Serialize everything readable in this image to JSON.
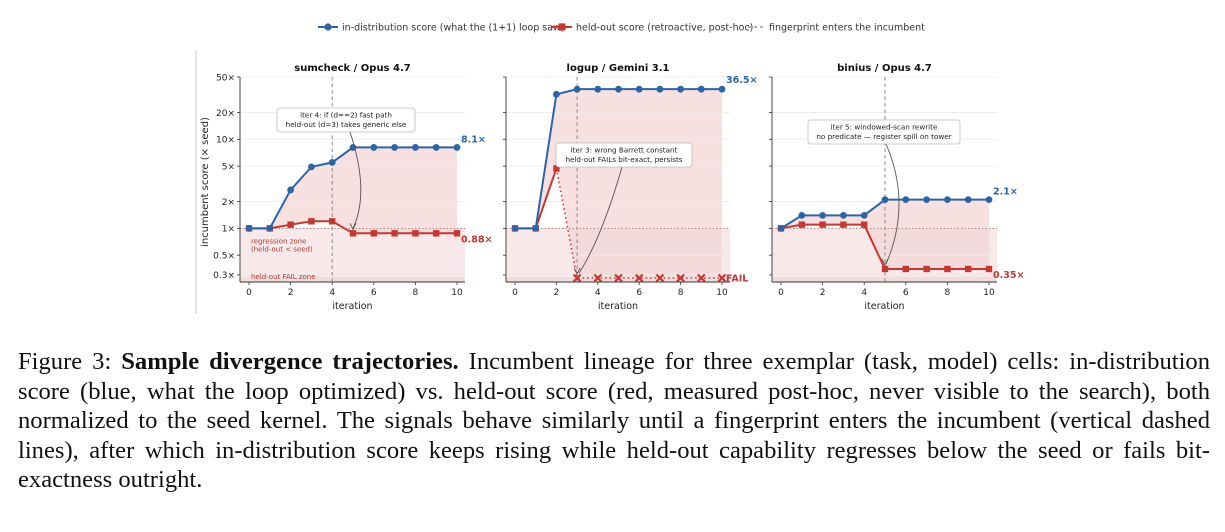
{
  "legend": {
    "in_dist": "in-distribution score (what the (1+1) loop saw)",
    "held_out": "held-out score (retroactive, post-hoc)",
    "fingerprint": "fingerprint enters the incumbent"
  },
  "colors": {
    "in_dist": "#2b65a8",
    "held_out": "#c8362f",
    "fill": "#f3d6d6",
    "zone": "#f7e9e9",
    "fail_zone": "#f1dcdc"
  },
  "shared": {
    "ylabel": "incumbent score  (× seed)",
    "xlabel": "iteration",
    "regression_zone": [
      "regression zone",
      "(held-out < seed)"
    ],
    "fail_zone": "held-out FAIL zone"
  },
  "chart_data": [
    {
      "type": "line",
      "title": "sumcheck / Opus 4.7",
      "x": [
        0,
        1,
        2,
        3,
        4,
        5,
        6,
        7,
        8,
        9,
        10
      ],
      "xticks": [
        0,
        2,
        4,
        6,
        8,
        10
      ],
      "yscale": "log",
      "yticks": [
        0.3,
        0.5,
        1,
        2,
        5,
        10,
        20,
        50
      ],
      "yticklabels": [
        "0.3×",
        "0.5×",
        "1×",
        "2×",
        "5×",
        "10×",
        "20×",
        "50×"
      ],
      "ylim": [
        0.25,
        50
      ],
      "series": [
        {
          "key": "in_dist",
          "values": [
            1,
            1,
            2.7,
            4.9,
            5.5,
            8.1,
            8.1,
            8.1,
            8.1,
            8.1,
            8.1
          ]
        },
        {
          "key": "held_out",
          "values": [
            1,
            1,
            1.1,
            1.2,
            1.2,
            0.88,
            0.88,
            0.88,
            0.88,
            0.88,
            0.88
          ]
        }
      ],
      "fingerprint_iter": 4,
      "annotation": {
        "lines": [
          "iter 4:  if (d==2) fast path",
          "held-out (d=3) takes generic else"
        ],
        "target_iter": 5
      },
      "end_labels": {
        "in_dist": "8.1×",
        "held_out": "0.88×"
      },
      "show_ylabel": true,
      "show_zone_labels": true
    },
    {
      "type": "line",
      "title": "logup / Gemini 3.1",
      "x": [
        0,
        1,
        2,
        3,
        4,
        5,
        6,
        7,
        8,
        9,
        10
      ],
      "xticks": [
        0,
        2,
        4,
        6,
        8,
        10
      ],
      "yscale": "log",
      "ylim": [
        0.25,
        50
      ],
      "series": [
        {
          "key": "in_dist",
          "values": [
            1,
            1,
            32,
            36.5,
            36.5,
            36.5,
            36.5,
            36.5,
            36.5,
            36.5,
            36.5
          ]
        },
        {
          "key": "held_out",
          "values": [
            1,
            1,
            4.7,
            "FAIL",
            "FAIL",
            "FAIL",
            "FAIL",
            "FAIL",
            "FAIL",
            "FAIL",
            "FAIL"
          ]
        }
      ],
      "fingerprint_iter": 3,
      "annotation": {
        "lines": [
          "iter 3:  wrong Barrett constant",
          "held-out FAILs bit-exact, persists"
        ],
        "target_iter": 3
      },
      "end_labels": {
        "in_dist": "36.5×",
        "held_out": "FAIL"
      },
      "show_ylabel": false,
      "show_zone_labels": false
    },
    {
      "type": "line",
      "title": "binius / Opus 4.7",
      "x": [
        0,
        1,
        2,
        3,
        4,
        5,
        6,
        7,
        8,
        9,
        10
      ],
      "xticks": [
        0,
        2,
        4,
        6,
        8,
        10
      ],
      "yscale": "log",
      "ylim": [
        0.25,
        50
      ],
      "series": [
        {
          "key": "in_dist",
          "values": [
            1,
            1.4,
            1.4,
            1.4,
            1.4,
            2.1,
            2.1,
            2.1,
            2.1,
            2.1,
            2.1
          ]
        },
        {
          "key": "held_out",
          "values": [
            1,
            1.1,
            1.1,
            1.1,
            1.1,
            0.35,
            0.35,
            0.35,
            0.35,
            0.35,
            0.35
          ]
        }
      ],
      "fingerprint_iter": 5,
      "annotation": {
        "lines": [
          "iter 5:  windowed-scan rewrite",
          "no predicate — register spill on tower"
        ],
        "target_iter": 5
      },
      "end_labels": {
        "in_dist": "2.1×",
        "held_out": "0.35×"
      },
      "show_ylabel": false,
      "show_zone_labels": false
    }
  ],
  "caption": {
    "label": "Figure 3:",
    "bold": "Sample divergence trajectories.",
    "text": "Incumbent lineage for three exemplar (task, model) cells: in-distribution score (blue, what the loop optimized) vs. held-out score (red, measured post-hoc, never visible to the search), both normalized to the seed kernel. The signals behave similarly until a fingerprint enters the incumbent (vertical dashed lines), after which in-distribution score keeps rising while held-out capability regresses below the seed or fails bit-exactness outright."
  }
}
